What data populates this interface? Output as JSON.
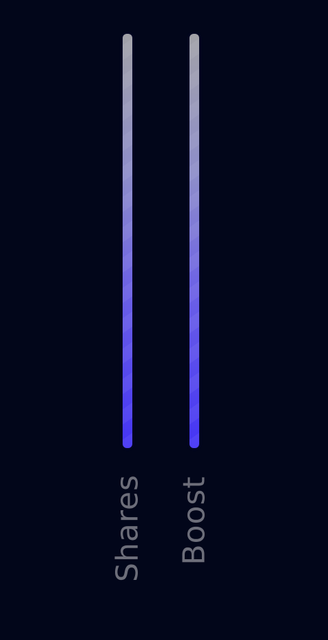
{
  "bars": [
    {
      "label": "Shares"
    },
    {
      "label": "Boost"
    }
  ],
  "colors": {
    "background": "#02061a",
    "label": "#6d6e7a",
    "bar_top": "#a2a2a8",
    "bar_bottom": "#4434f4"
  }
}
